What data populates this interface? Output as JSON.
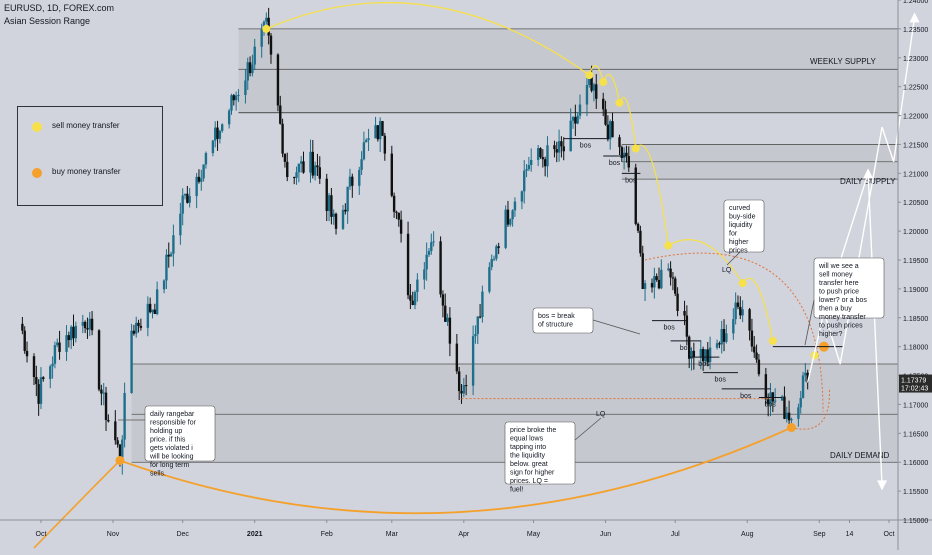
{
  "header": {
    "title": "EURUSD, 1D, FOREX.com",
    "indicator": "Asian Session Range"
  },
  "legend": {
    "items": [
      {
        "label": "sell money transfer",
        "color": "#f7e14a"
      },
      {
        "label": "buy money transfer",
        "color": "#f5a02a"
      }
    ]
  },
  "price_tag": {
    "price": "1.17379",
    "time": "17:02:43"
  },
  "colors": {
    "up_candle": "#1e6f8c",
    "down_candle": "#111111",
    "zone_fill": "#c4c6cd",
    "sell_marker": "#f7e14a",
    "buy_marker": "#f5a02a",
    "background": "#d1d4dc"
  },
  "chart_data": {
    "type": "candlestick",
    "xlabel": "",
    "ylabel": "",
    "ylim": [
      1.15,
      1.24
    ],
    "x_ticks": [
      "Oct",
      "Nov",
      "Dec",
      "2021",
      "Feb",
      "Mar",
      "Apr",
      "May",
      "Jun",
      "Jul",
      "Aug",
      "Sep",
      "14",
      "Oct"
    ],
    "y_ticks": [
      "1.15000",
      "1.15500",
      "1.16000",
      "1.16500",
      "1.17000",
      "1.17500",
      "1.18000",
      "1.18500",
      "1.19000",
      "1.19500",
      "1.20000",
      "1.20500",
      "1.21000",
      "1.21500",
      "1.22000",
      "1.22500",
      "1.23000",
      "1.23500",
      "1.24000"
    ],
    "price_path": [
      {
        "date": "2020-09-22",
        "close": 1.184
      },
      {
        "date": "2020-09-30",
        "close": 1.172
      },
      {
        "date": "2020-10-09",
        "close": 1.181
      },
      {
        "date": "2020-10-21",
        "close": 1.185
      },
      {
        "date": "2020-10-28",
        "close": 1.17
      },
      {
        "date": "2020-11-04",
        "close": 1.161
      },
      {
        "date": "2020-11-09",
        "close": 1.183
      },
      {
        "date": "2020-11-20",
        "close": 1.188
      },
      {
        "date": "2020-12-01",
        "close": 1.205
      },
      {
        "date": "2020-12-14",
        "close": 1.215
      },
      {
        "date": "2020-12-30",
        "close": 1.229
      },
      {
        "date": "2021-01-06",
        "close": 1.235
      },
      {
        "date": "2021-01-15",
        "close": 1.21
      },
      {
        "date": "2021-01-27",
        "close": 1.212
      },
      {
        "date": "2021-02-05",
        "close": 1.2
      },
      {
        "date": "2021-02-16",
        "close": 1.214
      },
      {
        "date": "2021-02-25",
        "close": 1.218
      },
      {
        "date": "2021-03-09",
        "close": 1.188
      },
      {
        "date": "2021-03-18",
        "close": 1.199
      },
      {
        "date": "2021-03-31",
        "close": 1.172
      },
      {
        "date": "2021-04-15",
        "close": 1.198
      },
      {
        "date": "2021-04-29",
        "close": 1.212
      },
      {
        "date": "2021-05-14",
        "close": 1.214
      },
      {
        "date": "2021-05-25",
        "close": 1.225
      },
      {
        "date": "2021-06-04",
        "close": 1.216
      },
      {
        "date": "2021-06-11",
        "close": 1.211
      },
      {
        "date": "2021-06-17",
        "close": 1.192
      },
      {
        "date": "2021-06-22",
        "close": 1.19
      },
      {
        "date": "2021-06-28",
        "close": 1.195
      },
      {
        "date": "2021-07-07",
        "close": 1.18
      },
      {
        "date": "2021-07-16",
        "close": 1.178
      },
      {
        "date": "2021-07-30",
        "close": 1.188
      },
      {
        "date": "2021-08-06",
        "close": 1.176
      },
      {
        "date": "2021-08-11",
        "close": 1.171
      },
      {
        "date": "2021-08-18",
        "close": 1.169
      },
      {
        "date": "2021-08-20",
        "close": 1.168
      },
      {
        "date": "2021-08-25",
        "close": 1.174
      },
      {
        "date": "2021-08-27",
        "close": 1.1738
      }
    ],
    "zones": [
      {
        "label": "WEEKLY SUPPLY",
        "from": "2020-12-25",
        "y_top": 1.235,
        "y_bottom": 1.2205
      },
      {
        "label": "DAILY SUPPLY",
        "from": "2021-06-08",
        "y_top": 1.215,
        "y_bottom": 1.209
      },
      {
        "label": "DAILY DEMAND",
        "from": "2020-11-09",
        "y_top": 1.177,
        "y_bottom": 1.16
      }
    ],
    "annotations": [
      "daily rangebar responsible for holding up price. if this gets violated i will be looking for long term sells.",
      "bos = break of structure",
      "price broke the equal lows tapping into the liquidity below. great sign for higher prices. LQ = fuel!",
      "curved buy-side liquidity for higher prices",
      "will we see a sell money transfer here to push price lower? or a bos then a buy money transfer to push prices higher?"
    ],
    "labels": [
      "bos",
      "bos",
      "bos",
      "bos",
      "bos",
      "bos",
      "bos",
      "bos",
      "bos",
      "LQ",
      "LQ"
    ]
  }
}
